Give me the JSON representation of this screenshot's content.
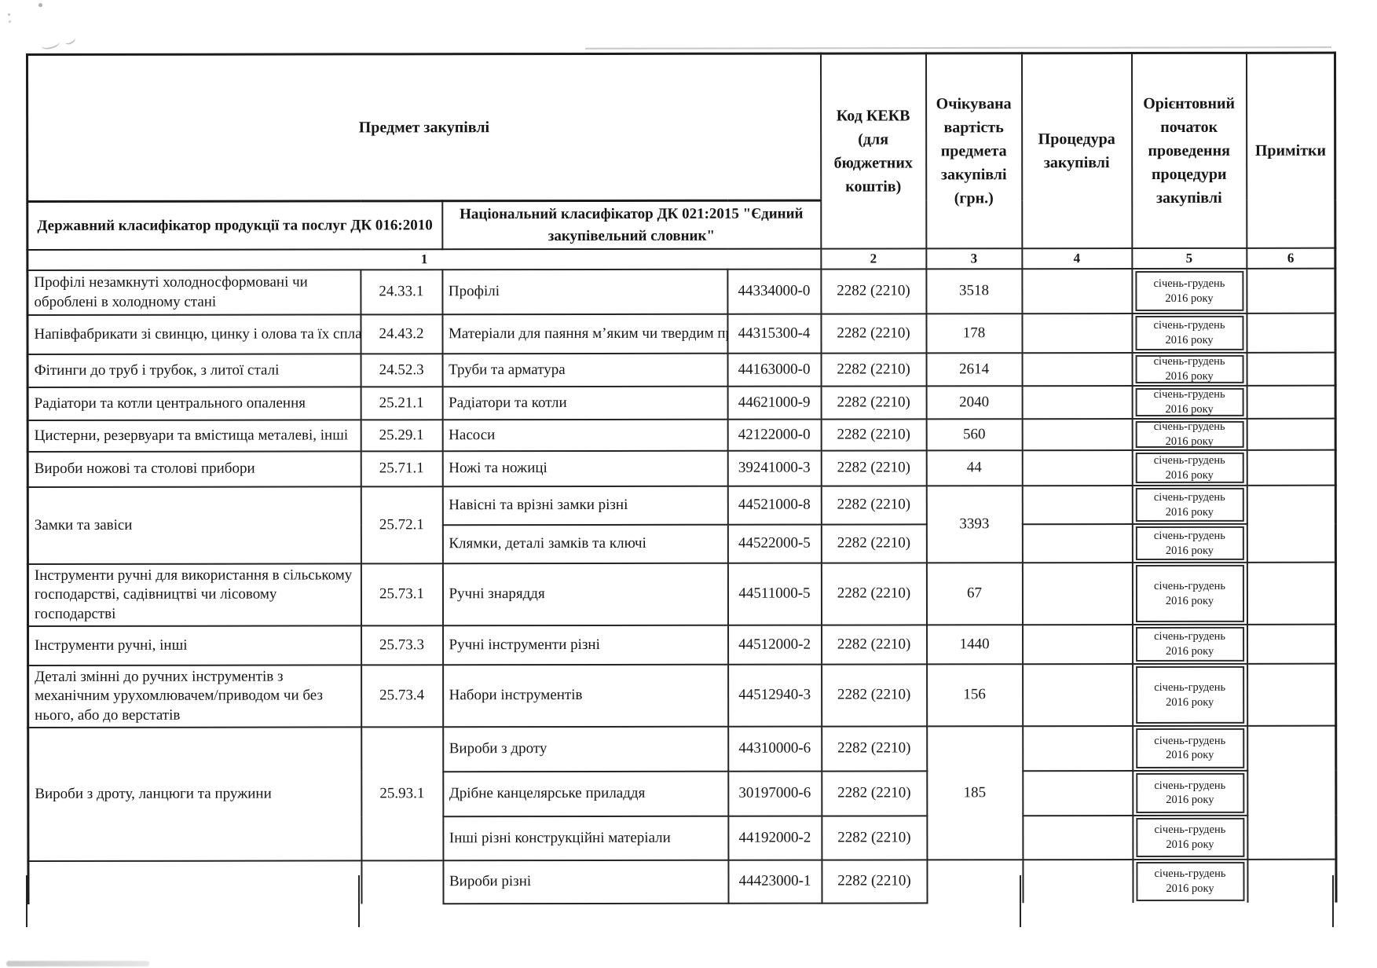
{
  "page": {
    "background": "#ffffff",
    "ink": "#1c1c1c"
  },
  "table": {
    "header": {
      "subject": "Предмет закупівлі",
      "dk016": "Державний класифікатор продукції та послуг  ДК 016:2010",
      "dk021": "Національний класифікатор ДК 021:2015 \"Єдиний закупівельний словник\"",
      "kekv": "Код КЕКВ (для бюджетних коштів)",
      "cost": "Очікувана вартість предмета закупівлі (грн.)",
      "procedure": "Процедура закупівлі",
      "start": "Орієнтовний початок проведення процедури закупівлі",
      "notes": "Примітки",
      "col_numbers": [
        "1",
        "2",
        "3",
        "4",
        "5",
        "6"
      ]
    },
    "groups": [
      {
        "dk016_name": "Профілі незамкнуті холодносформовані чи оброблені в холодному стані",
        "dk016_code": "24.33.1",
        "cost": "3518",
        "procedure": "",
        "notes": "",
        "items": [
          {
            "dk021_name": "Профілі",
            "dk021_code": "44334000-0",
            "kekv": "2282 (2210)",
            "start": "січень-грудень 2016 року"
          }
        ]
      },
      {
        "dk016_name": "Напівфабрикати зі свинцю, цинку і олова та їх сплав",
        "dk016_code": "24.43.2",
        "cost": "178",
        "procedure": "",
        "notes": "",
        "items": [
          {
            "dk021_name": "Матеріали для паяння м’яким чи твердим пр",
            "dk021_code": "44315300-4",
            "kekv": "2282 (2210)",
            "start": "січень-грудень 2016 року"
          }
        ]
      },
      {
        "dk016_name": "Фітинги до труб і трубок, з литої сталі",
        "dk016_code": "24.52.3",
        "cost": "2614",
        "procedure": "",
        "notes": "",
        "items": [
          {
            "dk021_name": "Труби та арматура",
            "dk021_code": "44163000-0",
            "kekv": "2282 (2210)",
            "start": "січень-грудень 2016 року"
          }
        ]
      },
      {
        "dk016_name": "Радіатори та котли центрального опалення",
        "dk016_code": "25.21.1",
        "cost": "2040",
        "procedure": "",
        "notes": "",
        "items": [
          {
            "dk021_name": "Радіатори та котли",
            "dk021_code": "44621000-9",
            "kekv": "2282 (2210)",
            "start": "січень-грудень 2016 року"
          }
        ]
      },
      {
        "dk016_name": "Цистерни, резервуари та вмістища металеві, інші",
        "dk016_code": "25.29.1",
        "cost": "560",
        "procedure": "",
        "notes": "",
        "items": [
          {
            "dk021_name": "Насоси",
            "dk021_code": "42122000-0",
            "kekv": "2282 (2210)",
            "start": "січень-грудень 2016 року"
          }
        ]
      },
      {
        "dk016_name": "Вироби ножові та столові прибори",
        "dk016_code": "25.71.1",
        "cost": "44",
        "procedure": "",
        "notes": "",
        "items": [
          {
            "dk021_name": "Ножі та ножиці",
            "dk021_code": "39241000-3",
            "kekv": "2282 (2210)",
            "start": "січень-грудень 2016 року"
          }
        ]
      },
      {
        "dk016_name": "Замки та завіси",
        "dk016_code": "25.72.1",
        "cost": "3393",
        "procedure": "",
        "notes": "",
        "items": [
          {
            "dk021_name": "Навісні та врізні замки різні",
            "dk021_code": "44521000-8",
            "kekv": "2282 (2210)",
            "start": "січень-грудень 2016 року"
          },
          {
            "dk021_name": "Клямки, деталі замків та ключі",
            "dk021_code": "44522000-5",
            "kekv": "2282 (2210)",
            "start": "січень-грудень 2016 року"
          }
        ]
      },
      {
        "dk016_name": "Інструменти ручні для використання в сільському господарстві, садівництві чи лісовому господарстві",
        "dk016_code": "25.73.1",
        "cost": "67",
        "procedure": "",
        "notes": "",
        "items": [
          {
            "dk021_name": "Ручні знаряддя",
            "dk021_code": "44511000-5",
            "kekv": "2282 (2210)",
            "start": "січень-грудень 2016 року"
          }
        ]
      },
      {
        "dk016_name": "Інструменти ручні, інші",
        "dk016_code": "25.73.3",
        "cost": "1440",
        "procedure": "",
        "notes": "",
        "items": [
          {
            "dk021_name": "Ручні інструменти різні",
            "dk021_code": "44512000-2",
            "kekv": "2282 (2210)",
            "start": "січень-грудень 2016 року"
          }
        ]
      },
      {
        "dk016_name": "Деталі змінні до ручних інструментів з механічним урухомлювачем/приводом чи без нього, або до верстатів",
        "dk016_code": "25.73.4",
        "cost": "156",
        "procedure": "",
        "notes": "",
        "items": [
          {
            "dk021_name": "Набори інструментів",
            "dk021_code": "44512940-3",
            "kekv": "2282 (2210)",
            "start": "січень-грудень 2016 року"
          }
        ]
      },
      {
        "dk016_name": "Вироби з дроту, ланцюги та пружини",
        "dk016_code": "25.93.1",
        "cost": "185",
        "procedure": "",
        "notes": "",
        "items": [
          {
            "dk021_name": "Вироби з дроту",
            "dk021_code": "44310000-6",
            "kekv": "2282 (2210)",
            "start": "січень-грудень 2016 року"
          },
          {
            "dk021_name": "Дрібне канцелярське приладдя",
            "dk021_code": "30197000-6",
            "kekv": "2282 (2210)",
            "start": "січень-грудень 2016 року"
          },
          {
            "dk021_name": "Інші різні конструкційні матеріали",
            "dk021_code": "44192000-2",
            "kekv": "2282 (2210)",
            "start": "січень-грудень 2016 року"
          }
        ]
      },
      {
        "dk016_name": "",
        "dk016_code": "",
        "cost": "",
        "procedure": "",
        "notes": "",
        "items": [
          {
            "dk021_name": "Вироби різні",
            "dk021_code": "44423000-1",
            "kekv": "2282 (2210)",
            "start": "січень-грудень 2016 року"
          }
        ]
      }
    ]
  }
}
